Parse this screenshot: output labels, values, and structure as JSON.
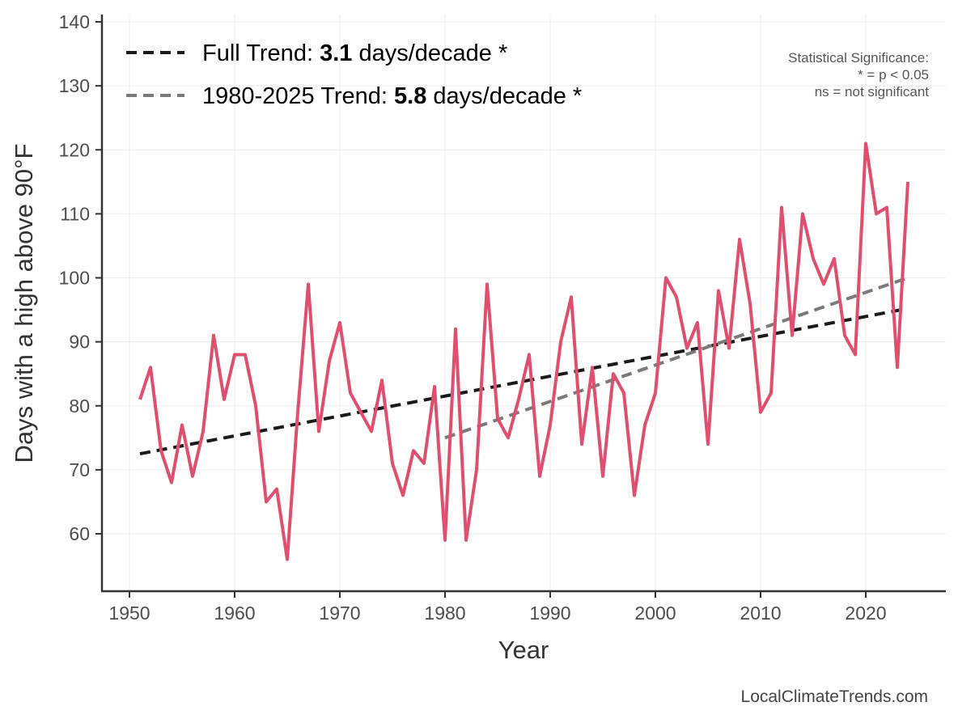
{
  "chart_data": {
    "type": "line",
    "xlabel": "Year",
    "ylabel": "Days with a high above 90°F",
    "xlim": [
      1947.5,
      2027.5
    ],
    "ylim": [
      51,
      141
    ],
    "xticks": [
      1950,
      1960,
      1970,
      1980,
      1990,
      2000,
      2010,
      2020
    ],
    "yticks": [
      60,
      70,
      80,
      90,
      100,
      110,
      120,
      130,
      140
    ],
    "grid": true,
    "x": [
      1951,
      1952,
      1953,
      1954,
      1955,
      1956,
      1957,
      1958,
      1959,
      1960,
      1961,
      1962,
      1963,
      1964,
      1965,
      1966,
      1967,
      1968,
      1969,
      1970,
      1971,
      1972,
      1973,
      1974,
      1975,
      1976,
      1977,
      1978,
      1979,
      1980,
      1981,
      1982,
      1983,
      1984,
      1985,
      1986,
      1987,
      1988,
      1989,
      1990,
      1991,
      1992,
      1993,
      1994,
      1995,
      1996,
      1997,
      1998,
      1999,
      2000,
      2001,
      2002,
      2003,
      2004,
      2005,
      2006,
      2007,
      2008,
      2009,
      2010,
      2011,
      2012,
      2013,
      2014,
      2015,
      2016,
      2017,
      2018,
      2019,
      2020,
      2021,
      2022,
      2023,
      2024
    ],
    "series": [
      {
        "name": "Days above 90°F",
        "color": "#e0506e",
        "values": [
          81,
          86,
          73,
          68,
          77,
          69,
          76,
          91,
          81,
          88,
          88,
          80,
          65,
          67,
          56,
          79,
          99,
          76,
          87,
          93,
          82,
          79,
          76,
          84,
          71,
          66,
          73,
          71,
          83,
          59,
          92,
          59,
          70,
          99,
          78,
          75,
          81,
          88,
          69,
          77,
          90,
          97,
          74,
          86,
          69,
          85,
          82,
          66,
          77,
          82,
          100,
          97,
          89,
          93,
          74,
          98,
          89,
          106,
          96,
          79,
          82,
          111,
          91,
          110,
          103,
          99,
          103,
          91,
          88,
          121,
          110,
          111,
          86,
          115
        ]
      }
    ],
    "trends": [
      {
        "name": "Full Trend",
        "prefix": "Full Trend: ",
        "value": "3.1",
        "suffix": " days/decade *",
        "color": "#1a1a1a",
        "x": [
          1951,
          2024
        ],
        "y": [
          72.5,
          95.2
        ]
      },
      {
        "name": "1980-2025 Trend",
        "prefix": "1980-2025 Trend: ",
        "value": "5.8",
        "suffix": " days/decade *",
        "color": "#7a7a7a",
        "x": [
          1980,
          2024
        ],
        "y": [
          75.0,
          100.0
        ]
      }
    ],
    "legend_position": "top-left",
    "significance_note": [
      "Statistical Significance:",
      "* = p < 0.05",
      "ns = not significant"
    ],
    "source": "LocalClimateTrends.com"
  }
}
